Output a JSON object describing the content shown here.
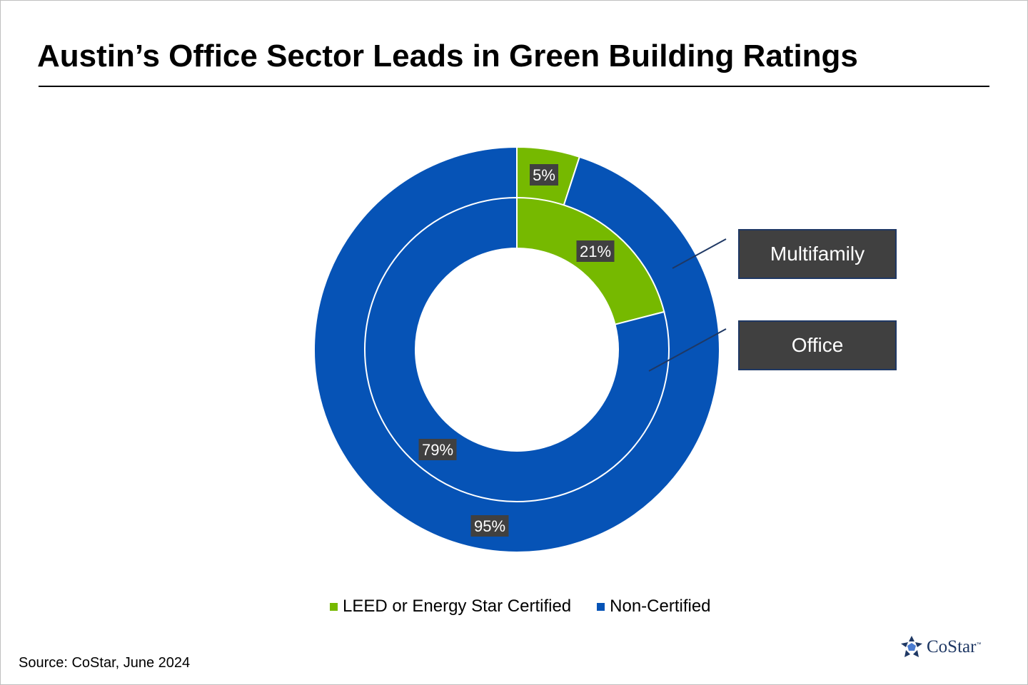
{
  "title": "Austin’s Office Sector Leads in Green Building Ratings",
  "source": "Source: CoStar, June 2024",
  "logo": {
    "text": "CoStar",
    "tm": "™",
    "icon": "costar-star-icon"
  },
  "colors": {
    "certified": "#76b900",
    "non_certified": "#0653b6",
    "label_bg": "#404040",
    "callout_border": "#1f3864"
  },
  "chart_data": {
    "type": "pie",
    "variant": "nested-donut",
    "categories": [
      "LEED or Energy Star Certified",
      "Non-Certified"
    ],
    "series": [
      {
        "name": "Multifamily",
        "ring": "outer",
        "values": [
          5,
          95
        ],
        "labels": [
          "5%",
          "95%"
        ]
      },
      {
        "name": "Office",
        "ring": "inner",
        "values": [
          21,
          79
        ],
        "labels": [
          "21%",
          "79%"
        ]
      }
    ],
    "legend": {
      "position": "bottom",
      "entries": [
        {
          "label": "LEED or Energy Star Certified",
          "color": "#76b900"
        },
        {
          "label": "Non-Certified",
          "color": "#0653b6"
        }
      ]
    },
    "callouts": [
      "Multifamily",
      "Office"
    ]
  }
}
